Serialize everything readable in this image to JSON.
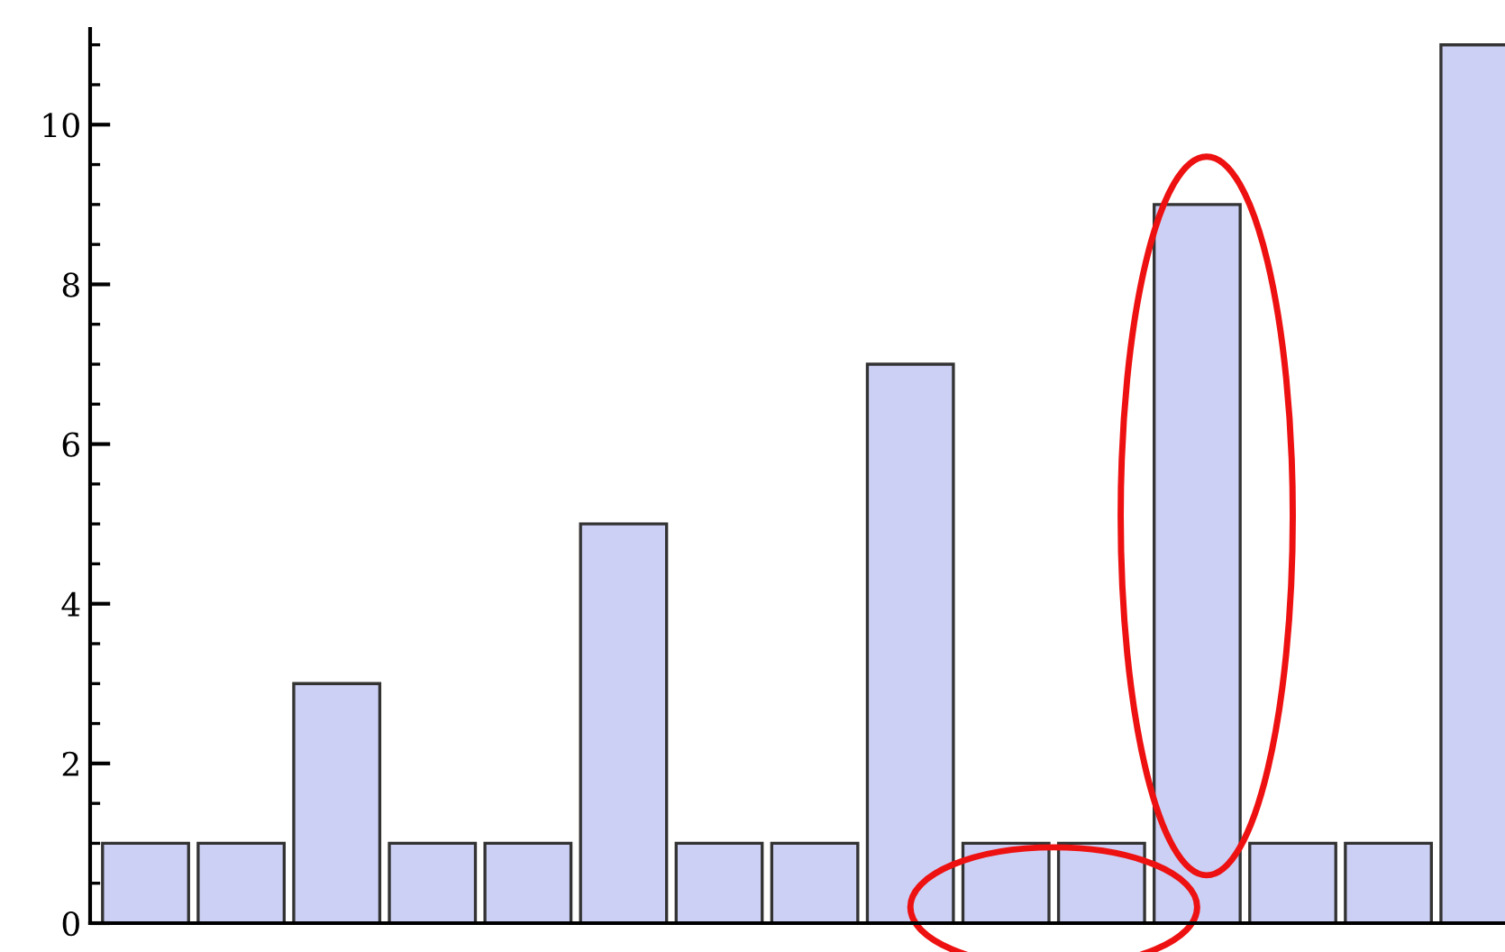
{
  "chart_data": {
    "type": "bar",
    "categories": [
      null,
      null,
      null,
      null,
      null,
      null,
      null,
      null,
      null,
      null,
      null,
      null,
      null,
      null,
      null
    ],
    "values": [
      1,
      1,
      3,
      1,
      1,
      5,
      1,
      1,
      7,
      1,
      1,
      9,
      1,
      1,
      11
    ],
    "color": "#ccd0f5",
    "ylim": [
      0,
      11.2
    ],
    "yticks": [
      0,
      2,
      4,
      6,
      8,
      10
    ],
    "tick_labels": "y",
    "grid": false
  }
}
